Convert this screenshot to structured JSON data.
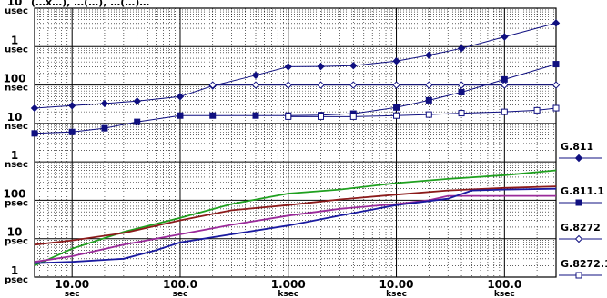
{
  "chart_data": {
    "type": "line",
    "title": "",
    "header_fragment": "(…x…), …(…), …(…)…",
    "xlabel": "",
    "ylabel": "",
    "x_scale": "log",
    "y_scale": "log",
    "xlim_s": [
      4.5,
      300000
    ],
    "ylim_s": [
      1e-12,
      1e-05
    ],
    "grid": true,
    "legend_position": "right",
    "x_ticks": [
      {
        "value": 10,
        "label_top": "10.00",
        "label_bottom": "sec"
      },
      {
        "value": 100,
        "label_top": "100.0",
        "label_bottom": "sec"
      },
      {
        "value": 1000,
        "label_top": "1.000",
        "label_bottom": "ksec"
      },
      {
        "value": 10000,
        "label_top": "10.00",
        "label_bottom": "ksec"
      },
      {
        "value": 100000,
        "label_top": "100.0",
        "label_bottom": "ksec"
      }
    ],
    "y_ticks": [
      {
        "value": 1e-05,
        "label_top": "10",
        "label_bottom": "usec"
      },
      {
        "value": 1e-06,
        "label_top": "1",
        "label_bottom": "usec"
      },
      {
        "value": 1e-07,
        "label_top": "100",
        "label_bottom": "nsec"
      },
      {
        "value": 1e-08,
        "label_top": "10",
        "label_bottom": "nsec"
      },
      {
        "value": 1e-09,
        "label_top": "1",
        "label_bottom": "nsec"
      },
      {
        "value": 1e-10,
        "label_top": "100",
        "label_bottom": "psec"
      },
      {
        "value": 1e-11,
        "label_top": "10",
        "label_bottom": "psec"
      },
      {
        "value": 1e-12,
        "label_top": "1",
        "label_bottom": "psec"
      }
    ],
    "series": [
      {
        "name": "G.811",
        "color": "#101080",
        "marker": "diamond-filled",
        "x": [
          4.5,
          10,
          20,
          40,
          100,
          200,
          500,
          1000,
          2000,
          4000,
          10000,
          20000,
          40000,
          100000,
          300000
        ],
        "y": [
          2.5e-08,
          2.9e-08,
          3.3e-08,
          3.8e-08,
          5e-08,
          9.5e-08,
          1.8e-07,
          3e-07,
          3.05e-07,
          3.2e-07,
          4.2e-07,
          6e-07,
          9e-07,
          1.8e-06,
          4.1e-06
        ]
      },
      {
        "name": "G.811.1",
        "color": "#101080",
        "marker": "square-filled",
        "x": [
          4.5,
          10,
          20,
          40,
          100,
          200,
          500,
          1000,
          2000,
          4000,
          10000,
          20000,
          40000,
          100000,
          300000
        ],
        "y": [
          5.5e-09,
          6e-09,
          7.5e-09,
          1.1e-08,
          1.6e-08,
          1.6e-08,
          1.6e-08,
          1.6e-08,
          1.65e-08,
          1.8e-08,
          2.6e-08,
          4e-08,
          6.5e-08,
          1.4e-07,
          3.5e-07
        ]
      },
      {
        "name": "G.8272",
        "color": "#101080",
        "marker": "diamond-open",
        "x": [
          200,
          500,
          1000,
          2000,
          4000,
          10000,
          20000,
          40000,
          100000,
          300000
        ],
        "y": [
          1e-07,
          1e-07,
          1e-07,
          1e-07,
          1e-07,
          1e-07,
          1e-07,
          1e-07,
          1e-07,
          1e-07
        ]
      },
      {
        "name": "G.8272.1",
        "color": "#101080",
        "marker": "square-open",
        "x": [
          1000,
          2000,
          4000,
          10000,
          20000,
          40000,
          100000,
          200000,
          300000
        ],
        "y": [
          1.5e-08,
          1.5e-08,
          1.5e-08,
          1.6e-08,
          1.7e-08,
          1.85e-08,
          2e-08,
          2.2e-08,
          2.5e-08
        ]
      },
      {
        "name": "",
        "color": "#1fa01f",
        "marker": "none",
        "x": [
          4.5,
          10,
          30,
          100,
          300,
          1000,
          3000,
          10000,
          30000,
          100000,
          300000
        ],
        "y": [
          2e-12,
          5.5e-12,
          1.5e-11,
          3.5e-11,
          8e-11,
          1.5e-10,
          1.9e-10,
          2.8e-10,
          3.6e-10,
          4.5e-10,
          6e-10
        ]
      },
      {
        "name": "",
        "color": "#8b1a1a",
        "marker": "none",
        "x": [
          4.5,
          10,
          30,
          100,
          300,
          1000,
          3000,
          10000,
          30000,
          100000,
          300000
        ],
        "y": [
          7e-12,
          9e-12,
          1.4e-11,
          3e-11,
          5.5e-11,
          7.5e-11,
          1.05e-10,
          1.4e-10,
          1.8e-10,
          2.1e-10,
          2.3e-10
        ]
      },
      {
        "name": "",
        "color": "#9a2a9a",
        "marker": "none",
        "x": [
          4.5,
          10,
          30,
          100,
          300,
          1000,
          3000,
          10000,
          20000,
          30000,
          100000,
          300000
        ],
        "y": [
          2.5e-12,
          3.5e-12,
          7e-12,
          1.3e-11,
          2.3e-11,
          4e-11,
          6e-11,
          8e-11,
          1e-10,
          1.3e-10,
          1.3e-10,
          1.3e-10
        ]
      },
      {
        "name": "",
        "color": "#1a1aa0",
        "marker": "none",
        "x": [
          4.5,
          10,
          30,
          60,
          100,
          300,
          1000,
          3000,
          10000,
          30000,
          50000,
          100000,
          300000
        ],
        "y": [
          2.3e-12,
          2.5e-12,
          3e-12,
          5e-12,
          8e-12,
          1.3e-11,
          2.2e-11,
          4e-11,
          7.5e-11,
          1.1e-10,
          1.8e-10,
          1.9e-10,
          2e-10
        ]
      }
    ]
  }
}
